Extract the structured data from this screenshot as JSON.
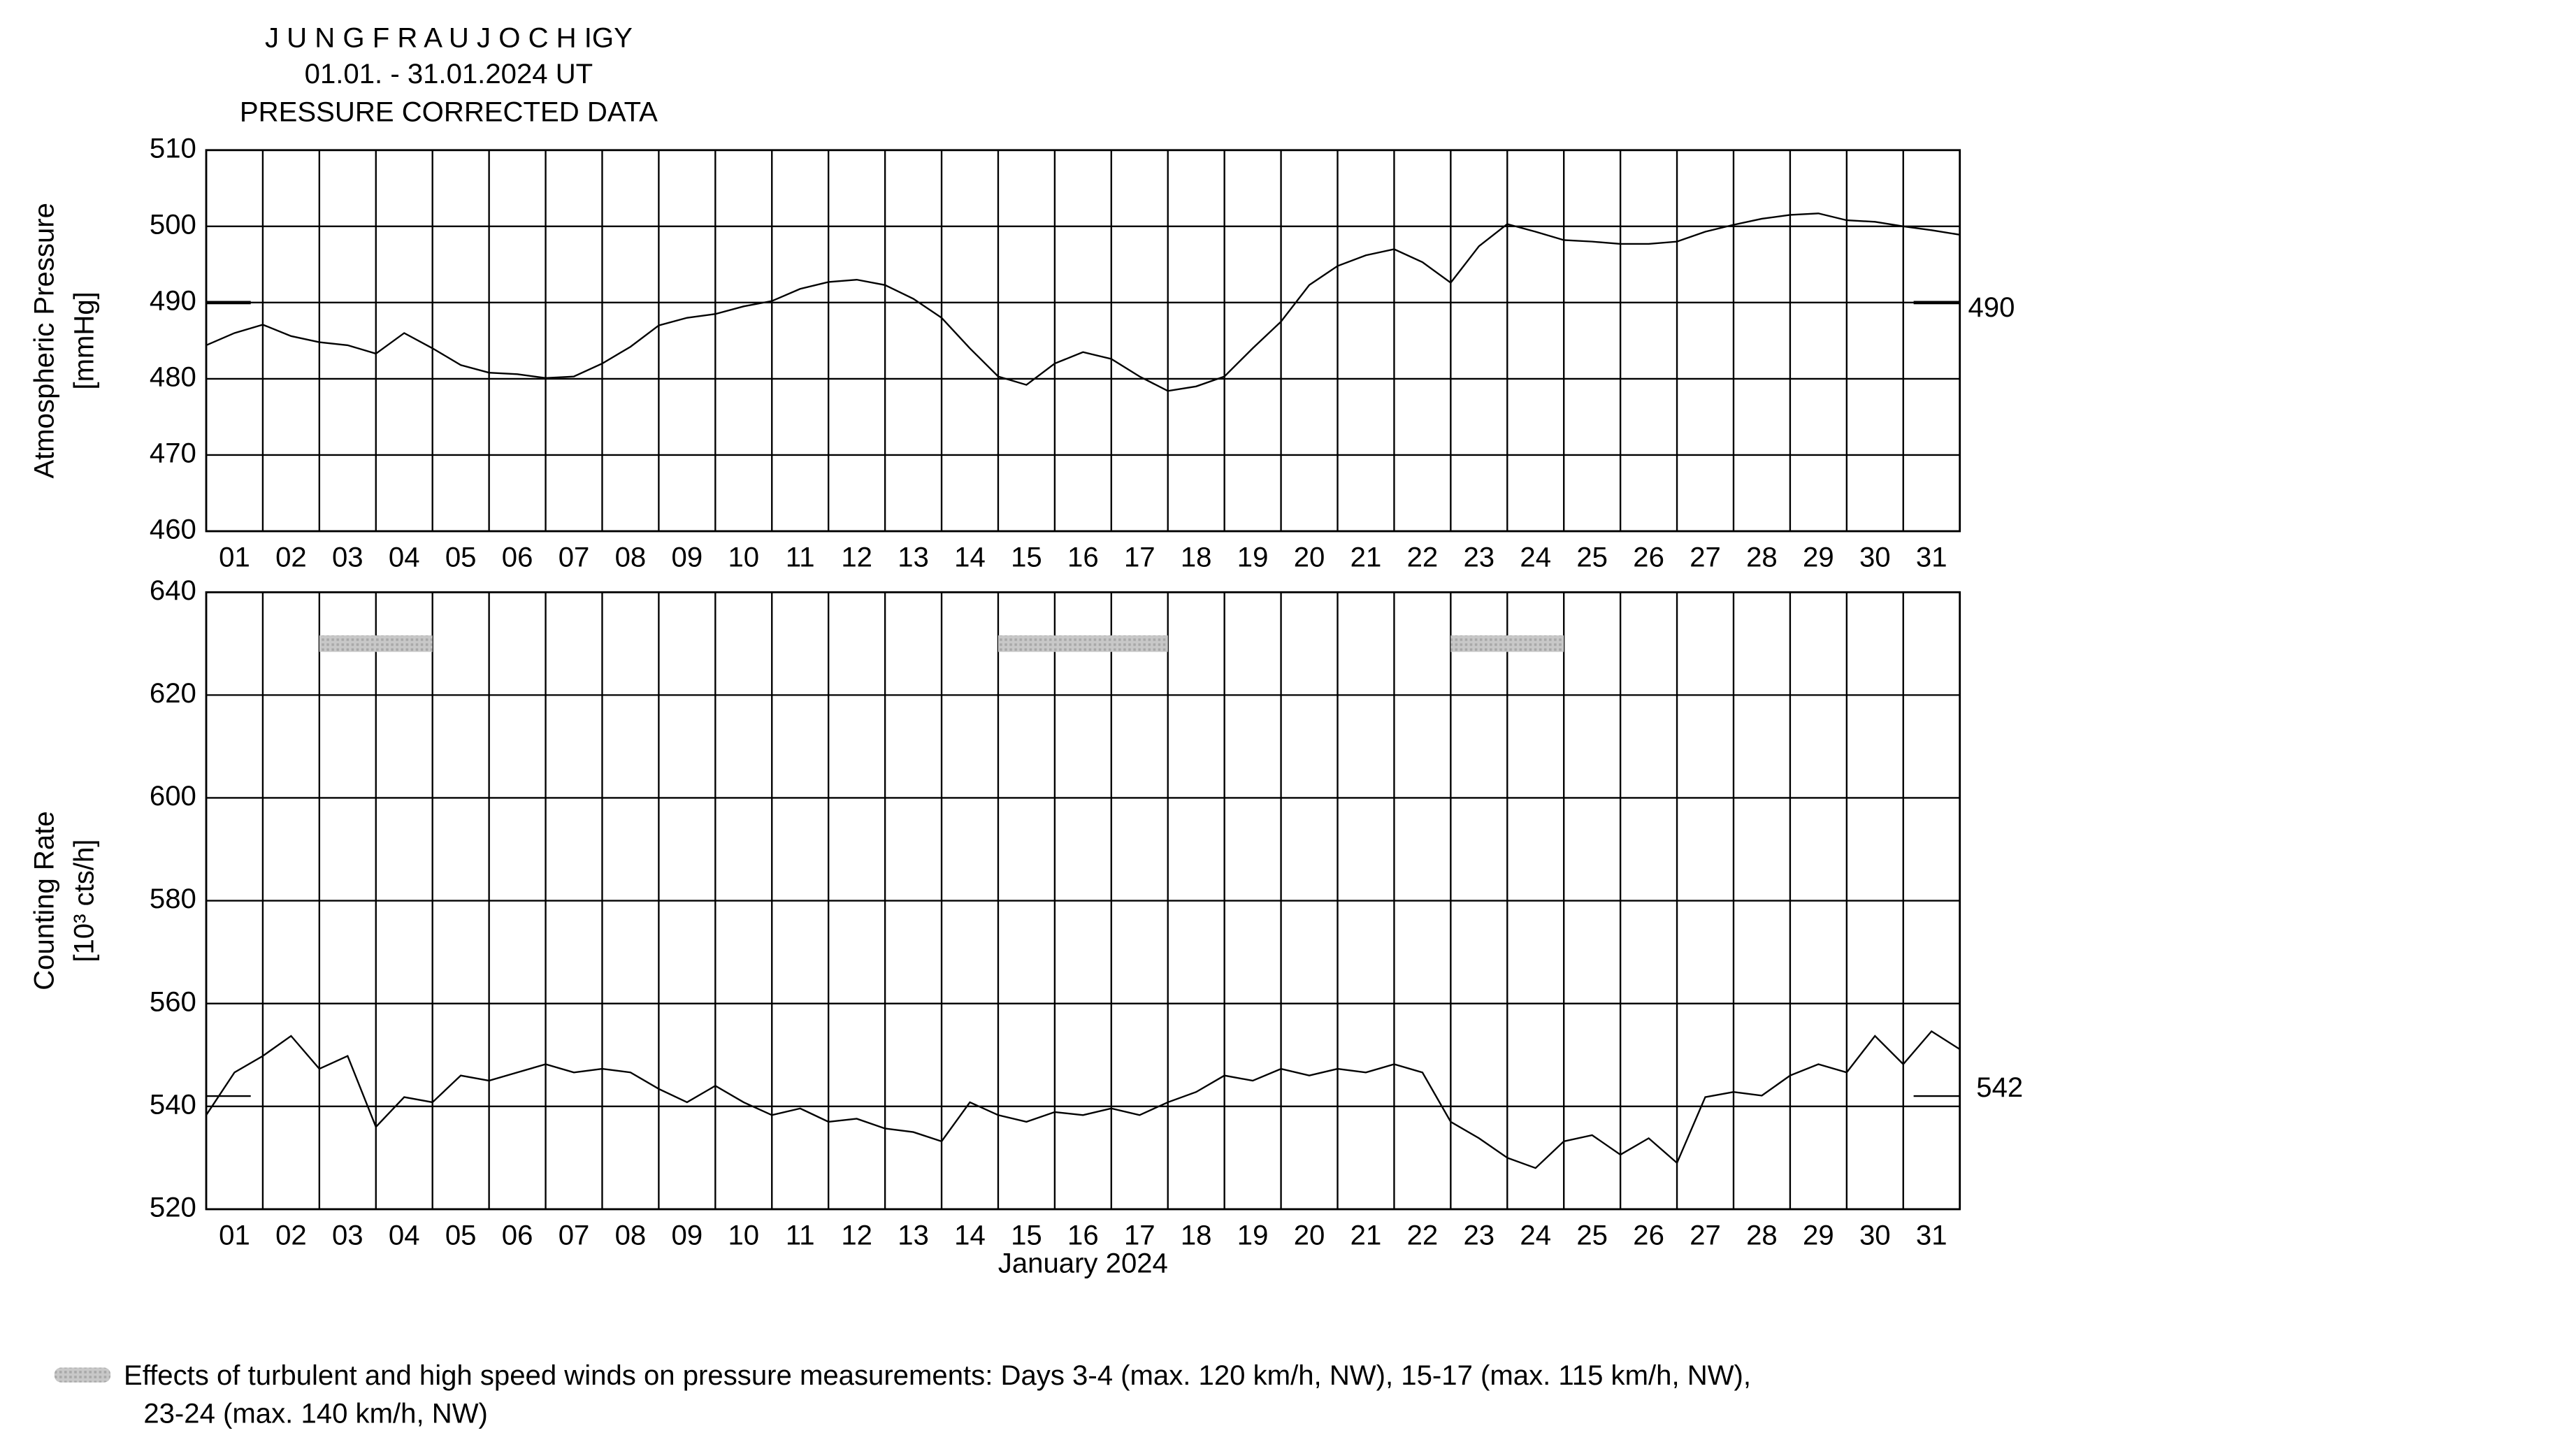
{
  "header": {
    "title": [
      "J U N G F R A U J O C H  IGY",
      "01.01. - 31.01.2024  UT",
      "PRESSURE CORRECTED DATA"
    ]
  },
  "chart_data": [
    {
      "type": "line",
      "ylabel": [
        "Atmospheric Pressure",
        "[mmHg]"
      ],
      "x": [
        1,
        1.5,
        2,
        2.5,
        3,
        3.5,
        4,
        4.5,
        5,
        5.5,
        6,
        6.5,
        7,
        7.5,
        8,
        8.5,
        9,
        9.5,
        10,
        10.5,
        11,
        11.5,
        12,
        12.5,
        13,
        13.5,
        14,
        14.5,
        15,
        15.5,
        16,
        16.5,
        17,
        17.5,
        18,
        18.5,
        19,
        19.5,
        20,
        20.5,
        21,
        21.5,
        22,
        22.5,
        23,
        23.5,
        24,
        24.5,
        25,
        25.5,
        26,
        26.5,
        27,
        27.5,
        28,
        28.5,
        29,
        29.5,
        30,
        30.5,
        31,
        31.5,
        32
      ],
      "series": [
        {
          "color": "#000000",
          "values": [
            484.4,
            486,
            487.1,
            485.6,
            484.8,
            484.4,
            483.3,
            486,
            484,
            481.8,
            480.8,
            480.6,
            480.1,
            480.3,
            482,
            484.2,
            487,
            488,
            488.5,
            489.5,
            490.2,
            491.8,
            492.7,
            493,
            492.3,
            490.5,
            488,
            484,
            480.3,
            479.2,
            482,
            483.5,
            482.6,
            480.3,
            478.4,
            479,
            480.3,
            484,
            487.5,
            492.3,
            494.8,
            496.2,
            497,
            495.3,
            492.6,
            497.4,
            500.3,
            499.3,
            498.2,
            498,
            497.7,
            497.7,
            498,
            499.3,
            500.2,
            501,
            501.5,
            501.7,
            500.8,
            500.6,
            500,
            499.5,
            498.9
          ]
        }
      ],
      "xlim": [
        1,
        32
      ],
      "xticks": [
        {
          "value": 1.5,
          "label": "01"
        },
        {
          "value": 2.5,
          "label": "02"
        },
        {
          "value": 3.5,
          "label": "03"
        },
        {
          "value": 4.5,
          "label": "04"
        },
        {
          "value": 5.5,
          "label": "05"
        },
        {
          "value": 6.5,
          "label": "06"
        },
        {
          "value": 7.5,
          "label": "07"
        },
        {
          "value": 8.5,
          "label": "08"
        },
        {
          "value": 9.5,
          "label": "09"
        },
        {
          "value": 10.5,
          "label": "10"
        },
        {
          "value": 11.5,
          "label": "11"
        },
        {
          "value": 12.5,
          "label": "12"
        },
        {
          "value": 13.5,
          "label": "13"
        },
        {
          "value": 14.5,
          "label": "14"
        },
        {
          "value": 15.5,
          "label": "15"
        },
        {
          "value": 16.5,
          "label": "16"
        },
        {
          "value": 17.5,
          "label": "17"
        },
        {
          "value": 18.5,
          "label": "18"
        },
        {
          "value": 19.5,
          "label": "19"
        },
        {
          "value": 20.5,
          "label": "20"
        },
        {
          "value": 21.5,
          "label": "21"
        },
        {
          "value": 22.5,
          "label": "22"
        },
        {
          "value": 23.5,
          "label": "23"
        },
        {
          "value": 24.5,
          "label": "24"
        },
        {
          "value": 25.5,
          "label": "25"
        },
        {
          "value": 26.5,
          "label": "26"
        },
        {
          "value": 27.5,
          "label": "27"
        },
        {
          "value": 28.5,
          "label": "28"
        },
        {
          "value": 29.5,
          "label": "29"
        },
        {
          "value": 30.5,
          "label": "30"
        },
        {
          "value": 31.5,
          "label": "31"
        }
      ],
      "ylim": [
        460,
        510
      ],
      "yticks": [
        460,
        470,
        480,
        490,
        500,
        510
      ],
      "grid": true,
      "reference": 490
    },
    {
      "type": "line",
      "ylabel": [
        "Counting Rate",
        "[10³ cts/h]"
      ],
      "xlabel": "January 2024",
      "x": [
        1,
        1.5,
        2,
        2.5,
        3,
        3.5,
        4,
        4.5,
        5,
        5.5,
        6,
        6.5,
        7,
        7.5,
        8,
        8.5,
        9,
        9.5,
        10,
        10.5,
        11,
        11.5,
        12,
        12.5,
        13,
        13.5,
        14,
        14.5,
        15,
        15.5,
        16,
        16.5,
        17,
        17.5,
        18,
        18.5,
        19,
        19.5,
        20,
        20.5,
        21,
        21.5,
        22,
        22.5,
        23,
        23.5,
        24,
        24.5,
        25,
        25.5,
        26,
        26.5,
        27,
        27.5,
        28,
        28.5,
        29,
        29.5,
        30,
        30.5,
        31,
        31.5,
        32
      ],
      "series": [
        {
          "color": "#000000",
          "values": [
            538.3,
            546.6,
            549.8,
            553.7,
            547.3,
            549.8,
            536,
            541.8,
            540.8,
            546,
            545,
            546.6,
            548.2,
            546.6,
            547.3,
            546.6,
            543.4,
            540.8,
            544,
            540.8,
            538.3,
            539.6,
            537,
            537.6,
            535.7,
            535,
            533.2,
            540.8,
            538.3,
            537,
            538.9,
            538.3,
            539.6,
            538.3,
            540.8,
            542.8,
            546,
            545,
            547.3,
            546,
            547.3,
            546.6,
            548.2,
            546.6,
            537,
            533.8,
            530,
            528,
            533.2,
            534.4,
            530.6,
            533.8,
            529,
            541.8,
            542.8,
            542.1,
            546,
            548.2,
            546.6,
            553.7,
            548.2,
            554.6,
            551.1
          ]
        }
      ],
      "xlim": [
        1,
        32
      ],
      "xticks": [
        {
          "value": 1.5,
          "label": "01"
        },
        {
          "value": 2.5,
          "label": "02"
        },
        {
          "value": 3.5,
          "label": "03"
        },
        {
          "value": 4.5,
          "label": "04"
        },
        {
          "value": 5.5,
          "label": "05"
        },
        {
          "value": 6.5,
          "label": "06"
        },
        {
          "value": 7.5,
          "label": "07"
        },
        {
          "value": 8.5,
          "label": "08"
        },
        {
          "value": 9.5,
          "label": "09"
        },
        {
          "value": 10.5,
          "label": "10"
        },
        {
          "value": 11.5,
          "label": "11"
        },
        {
          "value": 12.5,
          "label": "12"
        },
        {
          "value": 13.5,
          "label": "13"
        },
        {
          "value": 14.5,
          "label": "14"
        },
        {
          "value": 15.5,
          "label": "15"
        },
        {
          "value": 16.5,
          "label": "16"
        },
        {
          "value": 17.5,
          "label": "17"
        },
        {
          "value": 18.5,
          "label": "18"
        },
        {
          "value": 19.5,
          "label": "19"
        },
        {
          "value": 20.5,
          "label": "20"
        },
        {
          "value": 21.5,
          "label": "21"
        },
        {
          "value": 22.5,
          "label": "22"
        },
        {
          "value": 23.5,
          "label": "23"
        },
        {
          "value": 24.5,
          "label": "24"
        },
        {
          "value": 25.5,
          "label": "25"
        },
        {
          "value": 26.5,
          "label": "26"
        },
        {
          "value": 27.5,
          "label": "27"
        },
        {
          "value": 28.5,
          "label": "28"
        },
        {
          "value": 29.5,
          "label": "29"
        },
        {
          "value": 30.5,
          "label": "30"
        },
        {
          "value": 31.5,
          "label": "31"
        }
      ],
      "ylim": [
        520,
        640
      ],
      "yticks": [
        520,
        540,
        560,
        580,
        600,
        620,
        640
      ],
      "grid": true,
      "reference": 542,
      "bands": [
        {
          "x": [
            3,
            5
          ],
          "y": 630
        },
        {
          "x": [
            15,
            18
          ],
          "y": 630
        },
        {
          "x": [
            23,
            25
          ],
          "y": 630
        }
      ]
    }
  ],
  "note": [
    "Effects of turbulent and high speed winds on pressure measurements: Days 3-4 (max. 120 km/h, NW), 15-17 (max. 115 km/h, NW),",
    "23-24 (max. 140 km/h, NW)"
  ]
}
